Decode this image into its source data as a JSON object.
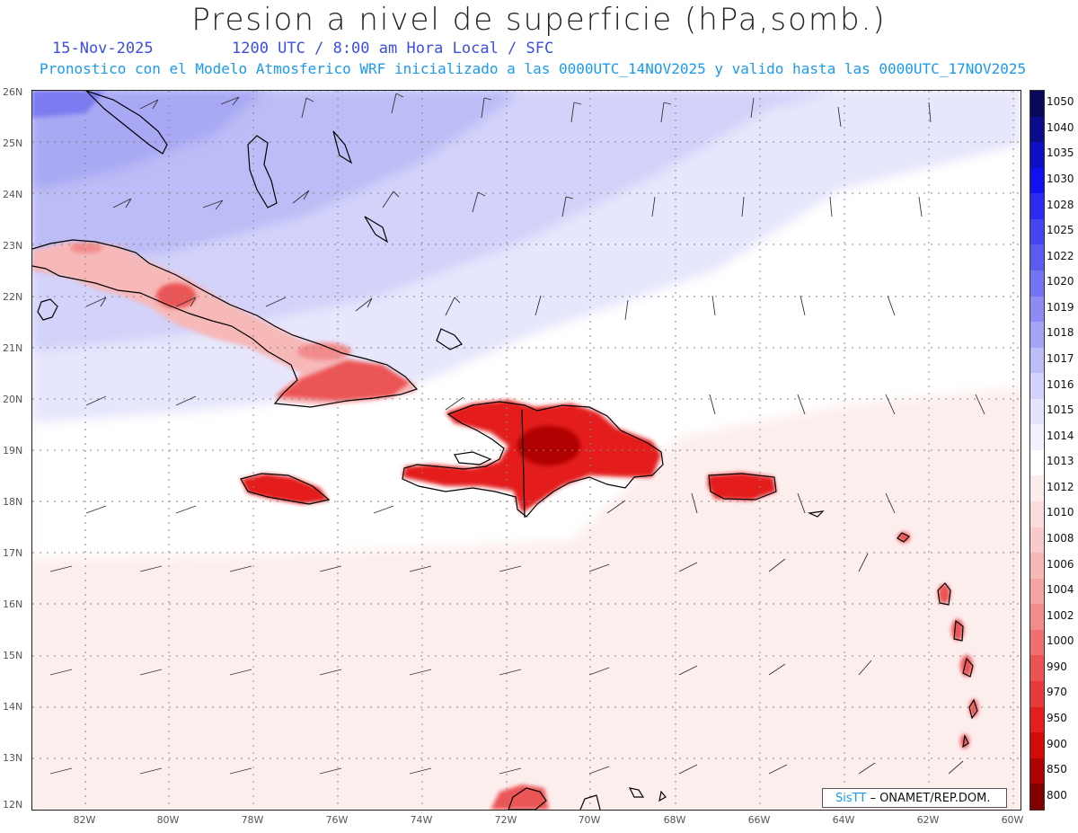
{
  "header": {
    "title": "Presion a nivel de superficie (hPa,somb.)",
    "date": "15-Nov-2025",
    "time_info": "1200 UTC / 8:00 am Hora Local / SFC",
    "forecast_info": "Pronostico con el Modelo Atmosferico WRF inicializado a las 0000UTC_14NOV2025 y valido hasta las  0000UTC_17NOV2025"
  },
  "map": {
    "lat_labels": [
      "26N",
      "25N",
      "24N",
      "23N",
      "22N",
      "21N",
      "20N",
      "19N",
      "18N",
      "17N",
      "16N",
      "15N",
      "14N",
      "13N",
      "12N"
    ],
    "lon_labels": [
      "82W",
      "80W",
      "78W",
      "76W",
      "74W",
      "72W",
      "70W",
      "68W",
      "66W",
      "64W",
      "62W",
      "60W"
    ],
    "region_labels": [],
    "background_color": "#fdeeee",
    "land_high_color": "#e8202a"
  },
  "colorbar": {
    "levels": [
      "1050",
      "1040",
      "1035",
      "1030",
      "1028",
      "1025",
      "1022",
      "1020",
      "1019",
      "1018",
      "1017",
      "1016",
      "1015",
      "1014",
      "1013",
      "1012",
      "1010",
      "1008",
      "1006",
      "1004",
      "1002",
      "1000",
      "990",
      "970",
      "950",
      "900",
      "850",
      "800"
    ],
    "colors": [
      "#08085a",
      "#0c0c8a",
      "#0e0ec2",
      "#1010f0",
      "#2b2bf2",
      "#4444f0",
      "#5b5bf0",
      "#7474f2",
      "#8c8cf4",
      "#a4a4f6",
      "#bcbcf8",
      "#d2d2fa",
      "#e4e4fc",
      "#f2f2fe",
      "#ffffff",
      "#fdecec",
      "#fbdcdc",
      "#f9caca",
      "#f7b8b8",
      "#f5a2a2",
      "#f28c8c",
      "#ef7070",
      "#ec5454",
      "#e83838",
      "#e41e1e",
      "#d40a0a",
      "#b00000",
      "#800000"
    ]
  },
  "credit": {
    "brand": "SisTT",
    "text": "– ONAMET/REP.DOM."
  }
}
